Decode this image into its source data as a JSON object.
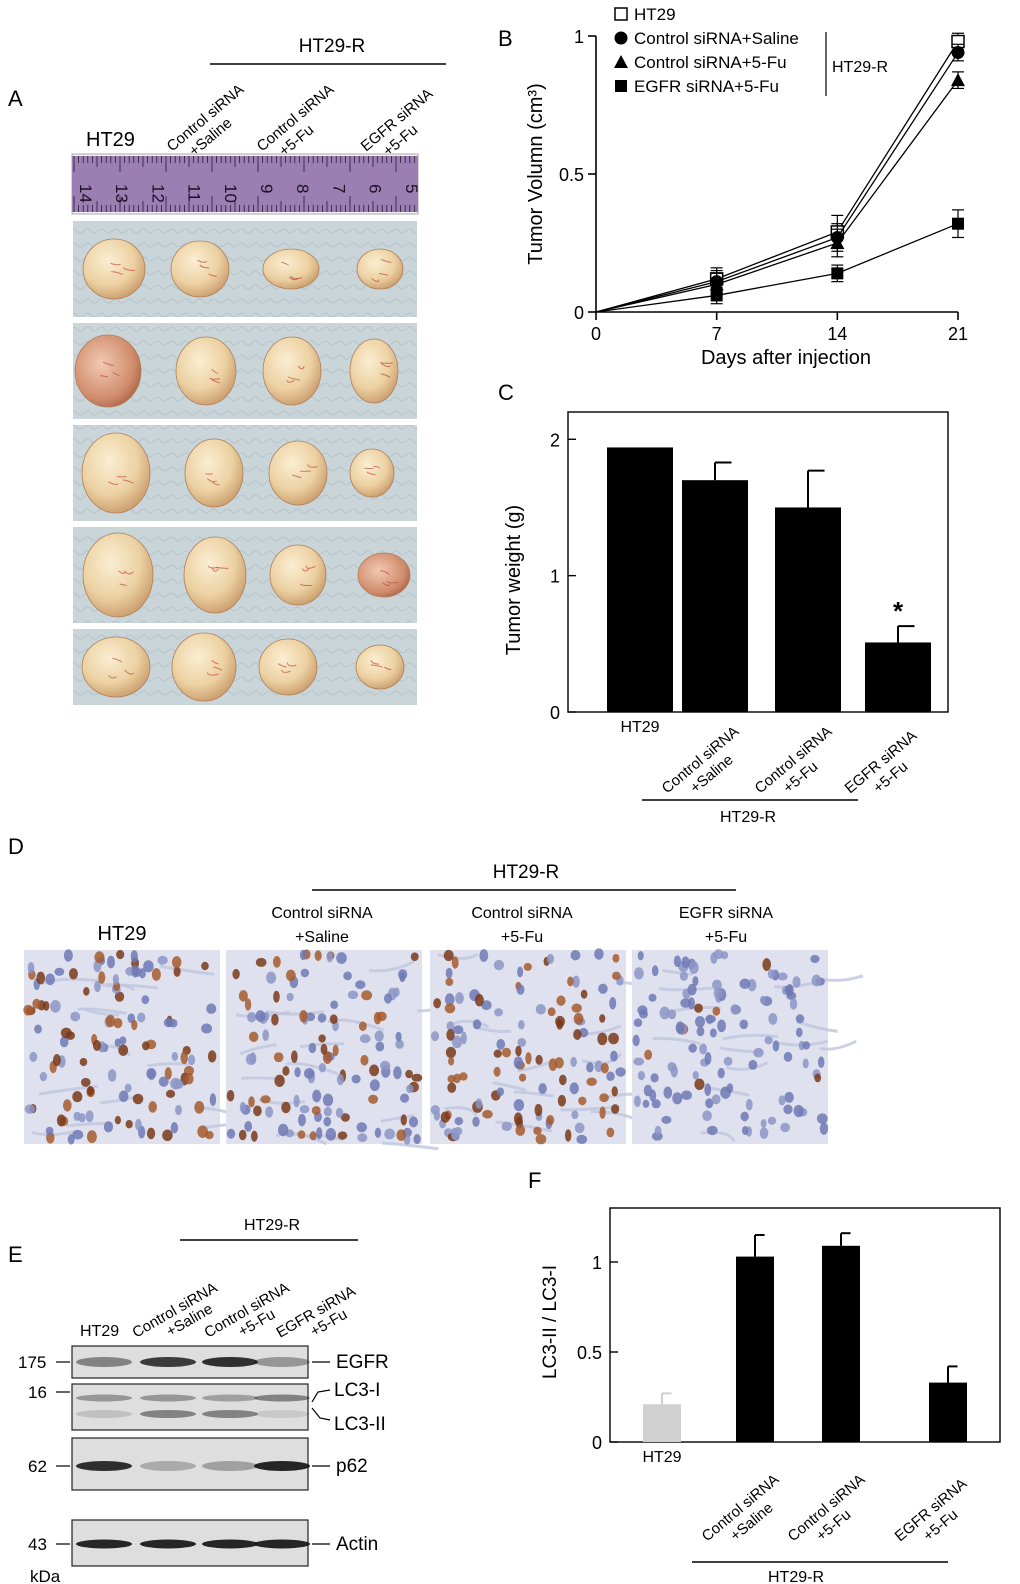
{
  "panel_letters": [
    "A",
    "B",
    "C",
    "D",
    "E",
    "F"
  ],
  "groups": {
    "ht29": "HT29",
    "ht29r": "HT29-R",
    "g2": [
      "Control siRNA",
      "+Saline"
    ],
    "g3": [
      "Control siRNA",
      "+5-Fu"
    ],
    "g4": [
      "EGFR siRNA",
      "+5-Fu"
    ]
  },
  "panelA": {
    "ruler_numbers": [
      "14",
      "13",
      "12",
      "11",
      "10",
      "9",
      "8",
      "7",
      "6",
      "5"
    ]
  },
  "panelE": {
    "mw_markers": [
      "175",
      "16",
      "62",
      "43"
    ],
    "unit": "kDa",
    "bands": [
      "EGFR",
      "LC3-I",
      "LC3-II",
      "p62",
      "Actin"
    ]
  },
  "colors": {
    "bar": "#000000",
    "bar_ht29_panelF": "#d0d0d0",
    "tumor": "#ecd2a4",
    "gel_bg": "#dcdcdc",
    "stain_bg": "#dfe3ef",
    "mat_bg": "#c8d4d8"
  },
  "chart_data": [
    {
      "panel": "B",
      "type": "line",
      "x": [
        0,
        7,
        14,
        21
      ],
      "xlabel": "Days after injection",
      "ylabel": "Tumor Volumn (cm³)",
      "ylim": [
        0,
        1
      ],
      "yticks": [
        "0",
        "0.5",
        "1"
      ],
      "xticks": [
        "0",
        "7",
        "14",
        "21"
      ],
      "legend_group": "HT29-R",
      "series": [
        {
          "name": "HT29",
          "marker": "open-square",
          "values": [
            0,
            0.12,
            0.29,
            0.98
          ],
          "errors": [
            0,
            0.04,
            0.06,
            0.03
          ]
        },
        {
          "name": "Control siRNA+Saline",
          "marker": "circle",
          "values": [
            0,
            0.11,
            0.27,
            0.94
          ],
          "errors": [
            0,
            0.04,
            0.05,
            0.03
          ]
        },
        {
          "name": "Control siRNA+5-Fu",
          "marker": "triangle",
          "values": [
            0,
            0.1,
            0.25,
            0.84
          ],
          "errors": [
            0,
            0.04,
            0.05,
            0.03
          ]
        },
        {
          "name": "EGFR siRNA+5-Fu",
          "marker": "square",
          "values": [
            0,
            0.06,
            0.14,
            0.32
          ],
          "errors": [
            0,
            0.03,
            0.03,
            0.05
          ]
        }
      ]
    },
    {
      "panel": "C",
      "type": "bar",
      "categories": [
        "HT29",
        "Control siRNA +Saline",
        "Control siRNA +5-Fu",
        "EGFR siRNA +5-Fu"
      ],
      "values": [
        1.94,
        1.7,
        1.5,
        0.51
      ],
      "errors": [
        0,
        0.13,
        0.27,
        0.12
      ],
      "significance": [
        "",
        "",
        "",
        "*"
      ],
      "ylabel": "Tumor weight (g)",
      "ylim": [
        0,
        2.2
      ],
      "yticks": [
        "0",
        "1",
        "2"
      ]
    },
    {
      "panel": "F",
      "type": "bar",
      "categories": [
        "HT29",
        "Control siRNA +Saline",
        "Control siRNA +5-Fu",
        "EGFR siRNA +5-Fu"
      ],
      "values": [
        0.21,
        1.03,
        1.09,
        0.33
      ],
      "errors": [
        0.06,
        0.12,
        0.07,
        0.09
      ],
      "ylabel": "LC3-II / LC3-I",
      "ylim": [
        0,
        1.3
      ],
      "yticks": [
        "0",
        "0.5",
        "1"
      ]
    }
  ]
}
